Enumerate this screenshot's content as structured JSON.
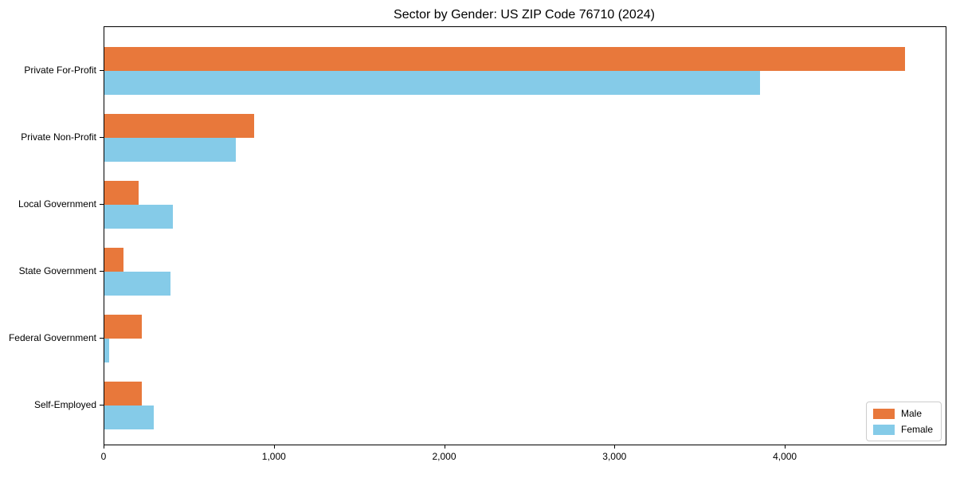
{
  "chart_data": {
    "type": "bar",
    "orientation": "horizontal",
    "title": "Sector by Gender: US ZIP Code 76710 (2024)",
    "categories": [
      "Private For-Profit",
      "Private Non-Profit",
      "Local Government",
      "State Government",
      "Federal Government",
      "Self-Employed"
    ],
    "series": [
      {
        "name": "Male",
        "color": "#e8783b",
        "values": [
          4700,
          880,
          200,
          110,
          220,
          220
        ]
      },
      {
        "name": "Female",
        "color": "#85cbe8",
        "values": [
          3850,
          770,
          400,
          390,
          30,
          290
        ]
      }
    ],
    "xlim": [
      0,
      4940
    ],
    "x_ticks": [
      0,
      1000,
      2000,
      3000,
      4000
    ],
    "x_tick_labels": [
      "0",
      "1,000",
      "2,000",
      "3,000",
      "4,000"
    ],
    "xlabel": "",
    "ylabel": "",
    "grid": false,
    "legend_position": "lower right"
  },
  "colors": {
    "axis": "#000000",
    "background": "#ffffff",
    "legend_border": "#cccccc"
  }
}
